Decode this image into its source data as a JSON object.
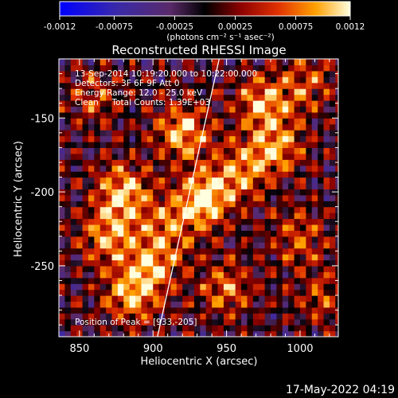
{
  "chart_data": {
    "type": "heatmap",
    "title": "Reconstructed RHESSI Image",
    "xlabel": "Heliocentric X (arcsec)",
    "ylabel": "Heliocentric Y (arcsec)",
    "xlim": [
      836,
      1026
    ],
    "ylim": [
      -298,
      -110
    ],
    "x_ticks": [
      "850",
      "900",
      "950",
      "1000"
    ],
    "y_ticks": [
      "-150",
      "-200",
      "-250"
    ],
    "x_tick_values": [
      850,
      900,
      950,
      1000
    ],
    "y_tick_values": [
      -150,
      -200,
      -250
    ],
    "colorbar": {
      "min": -0.0012,
      "max": 0.0012,
      "ticks": [
        "-0.0012",
        "-0.00075",
        "-0.00025",
        "0.00025",
        "0.00075",
        "0.0012"
      ],
      "tick_values": [
        -0.0012,
        -0.00075,
        -0.00025,
        0.00025,
        0.00075,
        0.0012
      ],
      "units_label": "(photons cm⁻² s⁻¹ asec⁻²)"
    },
    "info_lines": [
      "13-Sep-2014 10:19:20.000 to 10:22:00.000",
      "Detectors: 3F 6F 9F  Att 0",
      "Energy Range: 12.0 - 25.0 keV",
      "Clean     Total Counts: 1.39E+03"
    ],
    "peak_text": "Position of Peak = [933,-205]",
    "peak": {
      "x": 933,
      "y": -205
    },
    "limb_line": [
      {
        "x": 903,
        "y": -298
      },
      {
        "x": 945,
        "y": -110
      }
    ],
    "hotspots": [
      {
        "x": 935,
        "y": -205,
        "value": 0.0012
      },
      {
        "x": 920,
        "y": -160,
        "value": 0.001
      },
      {
        "x": 975,
        "y": -140,
        "value": 0.0009
      },
      {
        "x": 985,
        "y": -170,
        "value": 0.0008
      },
      {
        "x": 880,
        "y": -200,
        "value": 0.001
      },
      {
        "x": 870,
        "y": -230,
        "value": 0.0009
      },
      {
        "x": 900,
        "y": -250,
        "value": 0.0008
      },
      {
        "x": 885,
        "y": -270,
        "value": 0.0009
      },
      {
        "x": 950,
        "y": -265,
        "value": 0.0007
      },
      {
        "x": 1000,
        "y": -230,
        "value": 0.0006
      },
      {
        "x": 860,
        "y": -135,
        "value": 0.0005
      },
      {
        "x": 1015,
        "y": -270,
        "value": 0.0005
      },
      {
        "x": 960,
        "y": -185,
        "value": 0.0008
      },
      {
        "x": 910,
        "y": -225,
        "value": 0.0007
      },
      {
        "x": 1005,
        "y": -125,
        "value": 0.0006
      }
    ]
  },
  "footer": {
    "date": "17-May-2022 04:19"
  }
}
